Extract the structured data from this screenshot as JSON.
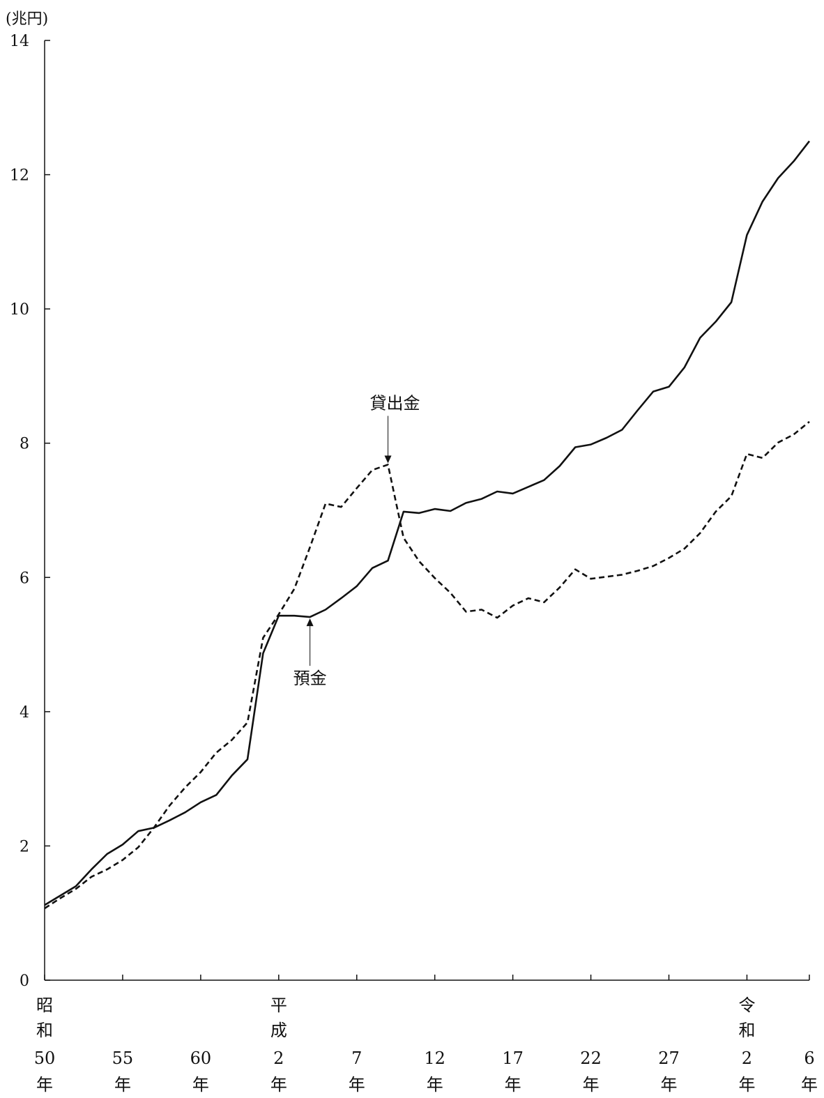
{
  "chart_data": {
    "type": "line",
    "unit_label": "(兆円)",
    "ylim": [
      0,
      14
    ],
    "y_ticks": [
      "0",
      "2",
      "4",
      "6",
      "8",
      "10",
      "12",
      "14"
    ],
    "x_range": [
      1975,
      2024
    ],
    "x_tick_years": [
      1975,
      1980,
      1985,
      1990,
      1995,
      2000,
      2005,
      2010,
      2015,
      2020,
      2024
    ],
    "x_tick_labels": [
      {
        "year": 1975,
        "era": [
          "昭",
          "和"
        ],
        "num": "50",
        "suffix": "年"
      },
      {
        "year": 1980,
        "era": [],
        "num": "55",
        "suffix": "年"
      },
      {
        "year": 1985,
        "era": [],
        "num": "60",
        "suffix": "年"
      },
      {
        "year": 1990,
        "era": [
          "平",
          "成"
        ],
        "num": "2",
        "suffix": "年"
      },
      {
        "year": 1995,
        "era": [],
        "num": "7",
        "suffix": "年"
      },
      {
        "year": 2000,
        "era": [],
        "num": "12",
        "suffix": "年"
      },
      {
        "year": 2005,
        "era": [],
        "num": "17",
        "suffix": "年"
      },
      {
        "year": 2010,
        "era": [],
        "num": "22",
        "suffix": "年"
      },
      {
        "year": 2015,
        "era": [],
        "num": "27",
        "suffix": "年"
      },
      {
        "year": 2020,
        "era": [
          "令",
          "和"
        ],
        "num": "2",
        "suffix": "年"
      },
      {
        "year": 2024,
        "era": [],
        "num": "6",
        "suffix": "年"
      }
    ],
    "series": [
      {
        "name": "預金",
        "style": "solid",
        "x": [
          1975,
          1976,
          1977,
          1978,
          1979,
          1980,
          1981,
          1982,
          1983,
          1984,
          1985,
          1986,
          1987,
          1988,
          1989,
          1990,
          1991,
          1992,
          1993,
          1994,
          1995,
          1996,
          1997,
          1998,
          1999,
          2000,
          2001,
          2002,
          2003,
          2004,
          2005,
          2006,
          2007,
          2008,
          2009,
          2010,
          2011,
          2012,
          2013,
          2014,
          2015,
          2016,
          2017,
          2018,
          2019,
          2020,
          2021,
          2022,
          2023,
          2024
        ],
        "values": [
          1.12,
          1.26,
          1.4,
          1.65,
          1.88,
          2.02,
          2.22,
          2.27,
          2.38,
          2.5,
          2.65,
          2.76,
          3.05,
          3.29,
          4.87,
          5.43,
          5.43,
          5.41,
          5.52,
          5.69,
          5.87,
          6.14,
          6.25,
          6.98,
          6.96,
          7.02,
          6.99,
          7.11,
          7.17,
          7.28,
          7.25,
          7.35,
          7.45,
          7.66,
          7.94,
          7.98,
          8.08,
          8.2,
          8.49,
          8.77,
          8.84,
          9.13,
          9.57,
          9.81,
          10.1,
          11.1,
          11.6,
          11.95,
          12.2,
          12.5
        ]
      },
      {
        "name": "貸出金",
        "style": "dashed",
        "x": [
          1975,
          1976,
          1977,
          1978,
          1979,
          1980,
          1981,
          1982,
          1983,
          1984,
          1985,
          1986,
          1987,
          1988,
          1989,
          1990,
          1991,
          1992,
          1993,
          1994,
          1995,
          1996,
          1997,
          1998,
          1999,
          2000,
          2001,
          2002,
          2003,
          2004,
          2005,
          2006,
          2007,
          2008,
          2009,
          2010,
          2011,
          2012,
          2013,
          2014,
          2015,
          2016,
          2017,
          2018,
          2019,
          2020,
          2021,
          2022,
          2023,
          2024
        ],
        "values": [
          1.07,
          1.22,
          1.36,
          1.54,
          1.65,
          1.79,
          1.98,
          2.27,
          2.6,
          2.87,
          3.1,
          3.39,
          3.58,
          3.84,
          5.1,
          5.45,
          5.83,
          6.45,
          7.1,
          7.05,
          7.33,
          7.6,
          7.68,
          6.59,
          6.24,
          5.99,
          5.77,
          5.49,
          5.52,
          5.4,
          5.58,
          5.69,
          5.63,
          5.85,
          6.12,
          5.98,
          6.01,
          6.04,
          6.1,
          6.17,
          6.29,
          6.43,
          6.66,
          6.98,
          7.21,
          7.84,
          7.78,
          8.01,
          8.13,
          8.32
        ]
      }
    ],
    "annotations": [
      {
        "text": "貸出金",
        "series": "貸出金",
        "year": 1997,
        "value": 7.68,
        "position": "above"
      },
      {
        "text": "預金",
        "series": "預金",
        "year": 1992,
        "value": 5.41,
        "position": "below"
      }
    ],
    "grid": false,
    "legend": "none"
  }
}
